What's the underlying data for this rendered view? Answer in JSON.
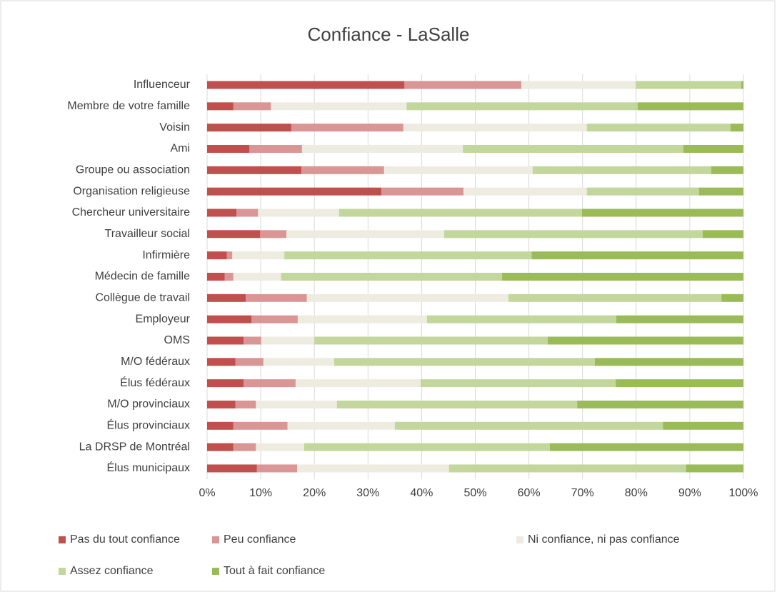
{
  "chart_data": {
    "type": "stacked-barh",
    "title": "Confiance - LaSalle",
    "categories": [
      "Influenceur",
      "Membre de votre famille",
      "Voisin",
      "Ami",
      "Groupe ou association",
      "Organisation religieuse",
      "Chercheur universitaire",
      "Travailleur social",
      "Infirmière",
      "Médecin de famille",
      "Collègue de travail",
      "Employeur",
      "OMS",
      "M/O fédéraux",
      "Élus fédéraux",
      "M/O provinciaux",
      "Élus provinciaux",
      "La DRSP de Montréal",
      "Élus municipaux"
    ],
    "series": [
      {
        "name": "Pas du tout confiance",
        "color": "#c0504d",
        "values": [
          36.8,
          4.9,
          15.7,
          7.9,
          17.6,
          32.5,
          5.5,
          9.9,
          3.7,
          3.3,
          7.2,
          8.3,
          6.8,
          5.3,
          6.8,
          5.3,
          4.9,
          4.9,
          9.3
        ]
      },
      {
        "name": "Peu confiance",
        "color": "#d99694",
        "values": [
          21.8,
          7.0,
          20.9,
          9.8,
          15.4,
          15.3,
          4.0,
          4.9,
          1.0,
          1.6,
          11.4,
          8.6,
          3.3,
          5.2,
          9.7,
          3.8,
          10.1,
          4.2,
          7.5
        ]
      },
      {
        "name": "Ni confiance, ni pas confiance",
        "color": "#eeece1",
        "values": [
          21.3,
          25.3,
          34.2,
          30.0,
          27.7,
          23.0,
          15.1,
          29.4,
          9.7,
          8.9,
          37.6,
          24.1,
          9.9,
          13.2,
          23.3,
          15.1,
          20.0,
          9.0,
          28.3
        ]
      },
      {
        "name": "Assez confiance",
        "color": "#c3d69b",
        "values": [
          19.7,
          43.1,
          26.8,
          41.1,
          33.3,
          20.9,
          45.3,
          48.2,
          46.1,
          41.2,
          39.7,
          35.3,
          43.5,
          48.6,
          36.4,
          44.8,
          50.0,
          45.8,
          44.2
        ]
      },
      {
        "name": "Tout à fait confiance",
        "color": "#9bbb59",
        "values": [
          0.4,
          19.7,
          2.4,
          11.2,
          6.0,
          8.3,
          30.1,
          7.6,
          39.5,
          45.0,
          4.1,
          23.7,
          36.5,
          27.7,
          23.8,
          31.0,
          15.0,
          36.1,
          10.7
        ]
      }
    ],
    "xlim": [
      0,
      100
    ],
    "xticks": [
      {
        "value": 0,
        "label": "0%"
      },
      {
        "value": 10,
        "label": "10%"
      },
      {
        "value": 20,
        "label": "20%"
      },
      {
        "value": 30,
        "label": "30%"
      },
      {
        "value": 40,
        "label": "40%"
      },
      {
        "value": 50,
        "label": "50%"
      },
      {
        "value": 60,
        "label": "60%"
      },
      {
        "value": 70,
        "label": "70%"
      },
      {
        "value": 80,
        "label": "80%"
      },
      {
        "value": 90,
        "label": "90%"
      },
      {
        "value": 100,
        "label": "100%"
      }
    ],
    "grid": true,
    "legend": "bottom"
  }
}
